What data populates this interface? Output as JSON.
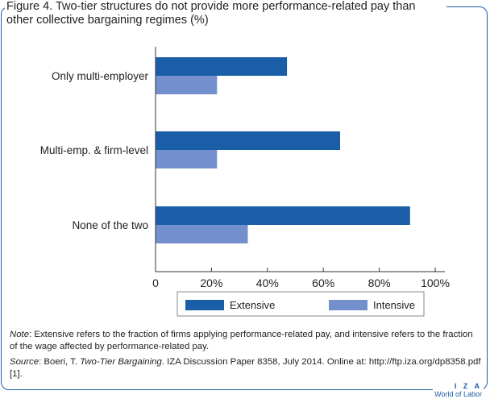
{
  "figure": {
    "title": "Figure 4. Two-tier structures do not provide more performance-related pay than other collective bargaining regimes (%)"
  },
  "chart_data": {
    "type": "bar",
    "orientation": "horizontal",
    "categories": [
      "Only multi-employer",
      "Multi-emp. & firm-level",
      "None of the two"
    ],
    "series": [
      {
        "name": "Extensive",
        "values": [
          47,
          66,
          91
        ],
        "color": "#1a5ea8"
      },
      {
        "name": "Intensive",
        "values": [
          22,
          22,
          33
        ],
        "color": "#7390cc"
      }
    ],
    "xlim": [
      0,
      100
    ],
    "xticks": [
      "0",
      "20%",
      "40%",
      "60%",
      "80%",
      "100%"
    ],
    "legend_position": "bottom"
  },
  "notes": {
    "note_label": "Note",
    "note_text": ": Extensive refers to the fraction of firms applying performance-related pay, and intensive refers to the fraction of the wage affected by performance-related pay.",
    "source_label": "Source",
    "source_text_1": ": Boeri, T. ",
    "source_title": "Two-Tier Bargaining",
    "source_text_2": ". IZA Discussion Paper 8358, July 2014. Online at: http://ftp.iza.org/dp8358.pdf [1]."
  },
  "brand": {
    "line1": "I Z A",
    "line2": "World of Labor"
  }
}
